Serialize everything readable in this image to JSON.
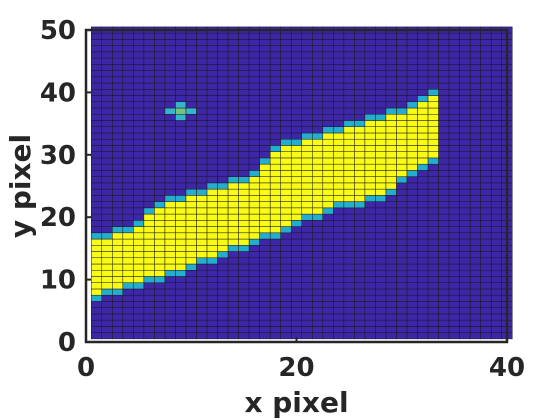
{
  "chart_data": {
    "type": "heatmap",
    "title": "",
    "xlabel": "x pixel",
    "ylabel": "y pixel",
    "xlim": [
      0,
      40
    ],
    "ylim": [
      0,
      50
    ],
    "x_ticks": [
      "0",
      "20",
      "40"
    ],
    "y_ticks": [
      "0",
      "10",
      "20",
      "30",
      "40",
      "50"
    ],
    "grid": "per-pixel cell edges drawn",
    "legend": "none",
    "colormap": "parula",
    "data_extent": {
      "x": [
        1,
        40
      ],
      "y": [
        1,
        50
      ]
    },
    "background_value": 0,
    "colors": {
      "low": "#3e26a8",
      "mid": "#35b7c9",
      "high": "#f9fb15",
      "cell_edge": "#1a1a1a",
      "axis": "#262626"
    },
    "features": [
      {
        "description": "bright diagonal band (high value)",
        "value": 1.0,
        "lower_edge": [
          [
            1,
            7
          ],
          [
            4,
            9
          ],
          [
            7,
            10
          ],
          [
            10,
            12
          ],
          [
            13,
            14
          ],
          [
            16,
            16
          ],
          [
            20,
            19
          ],
          [
            24,
            22
          ],
          [
            28,
            23
          ],
          [
            31,
            27
          ],
          [
            33,
            29
          ]
        ],
        "upper_edge": [
          [
            1,
            17
          ],
          [
            4,
            18
          ],
          [
            7,
            22
          ],
          [
            10,
            24
          ],
          [
            13,
            25
          ],
          [
            16,
            27
          ],
          [
            18,
            31
          ],
          [
            20,
            32
          ],
          [
            24,
            34
          ],
          [
            28,
            36
          ],
          [
            31,
            38
          ],
          [
            33,
            40
          ]
        ]
      },
      {
        "description": "small isolated blob",
        "value": 0.55,
        "center": [
          9,
          37
        ],
        "radius": 1.3
      }
    ]
  }
}
